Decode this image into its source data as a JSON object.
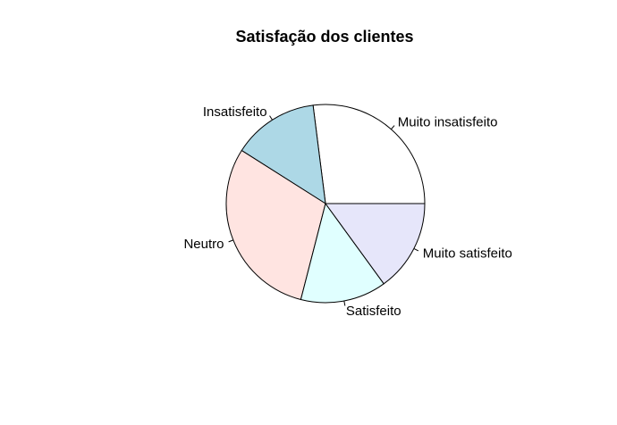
{
  "chart_data": {
    "type": "pie",
    "title": "Satisfação dos clientes",
    "categories": [
      "Muito insatisfeito",
      "Insatisfeito",
      "Neutro",
      "Satisfeito",
      "Muito satisfeito"
    ],
    "values": [
      27,
      14,
      30,
      14,
      15
    ],
    "colors": [
      "#FFFFFF",
      "#ADD8E6",
      "#FFE4E1",
      "#E0FFFF",
      "#E6E6FA"
    ],
    "start_angle_deg": 0,
    "direction": "counterclockwise",
    "legend": "none"
  }
}
